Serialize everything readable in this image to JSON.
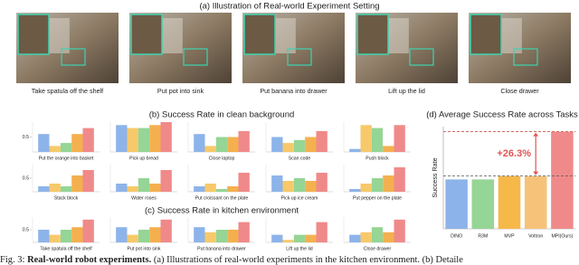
{
  "header": {
    "title": "(a) Illustration of Real-world Experiment Setting"
  },
  "images": [
    {
      "caption": "Take spatula off the shelf"
    },
    {
      "caption": "Put pot into sink"
    },
    {
      "caption": "Put banana into drawer"
    },
    {
      "caption": "Lift up the lid"
    },
    {
      "caption": "Close drawer"
    }
  ],
  "chart_data": [
    {
      "type": "bar-grid",
      "title": "(b) Success Rate in clean background",
      "ylim": [
        0,
        1
      ],
      "yticks": [
        0.5
      ],
      "colors": [
        "#8db4ea",
        "#f7c96a",
        "#95d595",
        "#f4b04f",
        "#f08a8a"
      ],
      "panels": [
        {
          "label": "Put the orange into basket",
          "values": [
            0.6,
            0.2,
            0.3,
            0.6,
            0.8
          ]
        },
        {
          "label": "Pick up bread",
          "values": [
            0.9,
            0.8,
            0.8,
            0.9,
            1.0
          ]
        },
        {
          "label": "Close laptop",
          "values": [
            0.6,
            0.2,
            0.5,
            0.5,
            0.7
          ]
        },
        {
          "label": "Scan code",
          "values": [
            0.5,
            0.3,
            0.4,
            0.5,
            0.7
          ]
        },
        {
          "label": "Push block",
          "values": [
            0.1,
            0.9,
            0.8,
            0.2,
            0.9
          ]
        },
        {
          "label": "Stack block",
          "values": [
            0.2,
            0.3,
            0.2,
            0.6,
            0.8
          ]
        },
        {
          "label": "Water roses",
          "values": [
            0.3,
            0.2,
            0.5,
            0.3,
            0.8
          ]
        },
        {
          "label": "Put croissant on the plate",
          "values": [
            0.2,
            0.3,
            0.1,
            0.2,
            0.7
          ]
        },
        {
          "label": "Pick up ice cream",
          "values": [
            0.6,
            0.4,
            0.5,
            0.4,
            0.7
          ]
        },
        {
          "label": "Put pepper on the plate",
          "values": [
            0.1,
            0.3,
            0.5,
            0.6,
            0.9
          ]
        }
      ]
    },
    {
      "type": "bar-grid",
      "title": "(c) Success Rate in kitchen environment",
      "ylim": [
        0,
        1
      ],
      "yticks": [
        0.5
      ],
      "colors": [
        "#8db4ea",
        "#f7c96a",
        "#95d595",
        "#f4b04f",
        "#f08a8a"
      ],
      "panels": [
        {
          "label": "Take spatula off the shelf",
          "values": [
            0.5,
            0.3,
            0.5,
            0.6,
            0.9
          ]
        },
        {
          "label": "Put pot into sink",
          "values": [
            0.6,
            0.3,
            0.5,
            0.6,
            0.9
          ]
        },
        {
          "label": "Put banana into drawer",
          "values": [
            0.6,
            0.4,
            0.5,
            0.5,
            0.8
          ]
        },
        {
          "label": "Lift up the lid",
          "values": [
            0.3,
            0.1,
            0.3,
            0.3,
            0.8
          ]
        },
        {
          "label": "Close drawer",
          "values": [
            0.3,
            0.4,
            0.6,
            0.4,
            0.9
          ]
        }
      ]
    },
    {
      "type": "bar",
      "title": "(d) Average Success Rate across Tasks",
      "ylabel": "Success Rate",
      "categories": [
        "DINO",
        "R3M",
        "MVP",
        "Voltron",
        "MPI(Ours)"
      ],
      "values": [
        0.39,
        0.39,
        0.41,
        0.41,
        0.67
      ],
      "colors": [
        "#8db4ea",
        "#95d595",
        "#f7b84a",
        "#f6c27a",
        "#f08a8a"
      ],
      "ylim": [
        0.1,
        0.7
      ],
      "annotation": "+26.3%"
    }
  ],
  "caption": {
    "label": "Fig. 3:",
    "bold": "Real-world robot experiments.",
    "text": "(a) Illustrations of real-world experiments in the kitchen environment. (b) Detaile"
  }
}
